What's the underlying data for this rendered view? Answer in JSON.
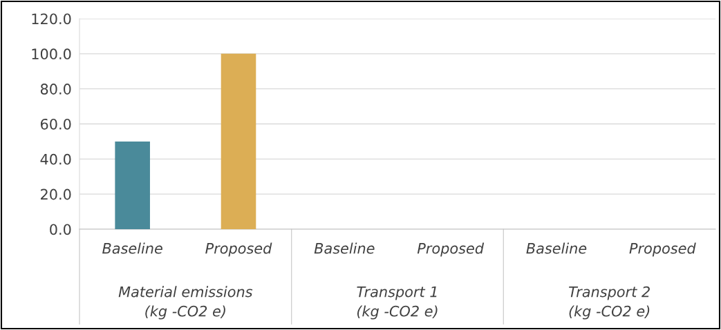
{
  "chart_data": {
    "type": "bar",
    "categories": [
      "Baseline",
      "Proposed",
      "Baseline",
      "Proposed",
      "Baseline",
      "Proposed"
    ],
    "values": [
      50,
      100,
      0,
      0,
      0,
      0
    ],
    "colors": [
      "#4a8a9a",
      "#dcae55",
      "#4a8a9a",
      "#dcae55",
      "#4a8a9a",
      "#dcae55"
    ],
    "annotations": [
      "Material emissions\n(kg -CO2 e)",
      "Transport 1\n(kg -CO2 e)",
      "Transport 2\n(kg -CO2 e)"
    ],
    "ylim": [
      0,
      120
    ],
    "yticks": [
      {
        "value": 0,
        "label": "0.0"
      },
      {
        "value": 20,
        "label": "20.0"
      },
      {
        "value": 40,
        "label": "40.0"
      },
      {
        "value": 60,
        "label": "60.0"
      },
      {
        "value": 80,
        "label": "80.0"
      },
      {
        "value": 100,
        "label": "100.0"
      },
      {
        "value": 120,
        "label": "120.0"
      }
    ],
    "grid": "y",
    "legend": false
  }
}
